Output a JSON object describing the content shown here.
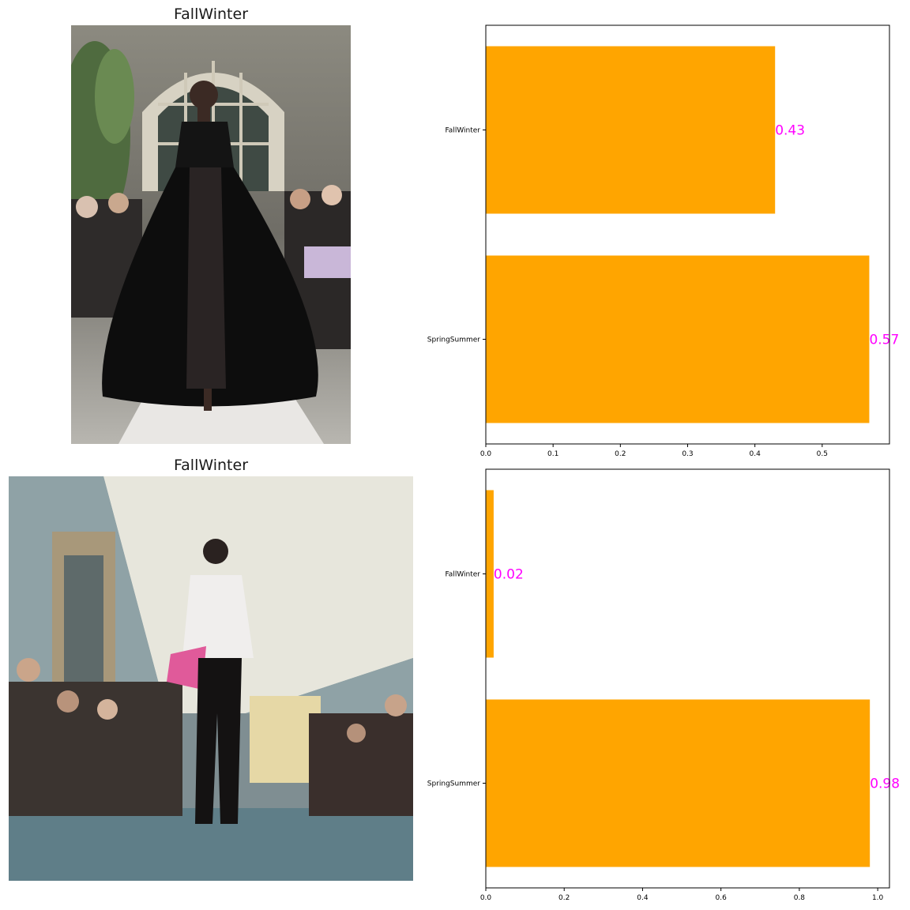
{
  "panels": [
    {
      "title": "FallWinter"
    },
    {
      "title": "FallWinter"
    }
  ],
  "colors": {
    "bar": "#FFA500",
    "label": "#FF00FF"
  },
  "chart_data": [
    {
      "type": "bar",
      "orientation": "horizontal",
      "categories": [
        "FallWinter",
        "SpringSummer"
      ],
      "values": [
        0.43,
        0.57
      ],
      "data_labels": [
        "0.43",
        "0.57"
      ],
      "xlim": [
        0,
        0.6
      ],
      "xticks": [
        0.0,
        0.1,
        0.2,
        0.3,
        0.4,
        0.5
      ],
      "xtick_labels": [
        "0.0",
        "0.1",
        "0.2",
        "0.3",
        "0.4",
        "0.5"
      ]
    },
    {
      "type": "bar",
      "orientation": "horizontal",
      "categories": [
        "FallWinter",
        "SpringSummer"
      ],
      "values": [
        0.02,
        0.98
      ],
      "data_labels": [
        "0.02",
        "0.98"
      ],
      "xlim": [
        0,
        1.03
      ],
      "xticks": [
        0.0,
        0.2,
        0.4,
        0.6,
        0.8,
        1.0
      ],
      "xtick_labels": [
        "0.0",
        "0.2",
        "0.4",
        "0.6",
        "0.8",
        "1.0"
      ]
    }
  ]
}
